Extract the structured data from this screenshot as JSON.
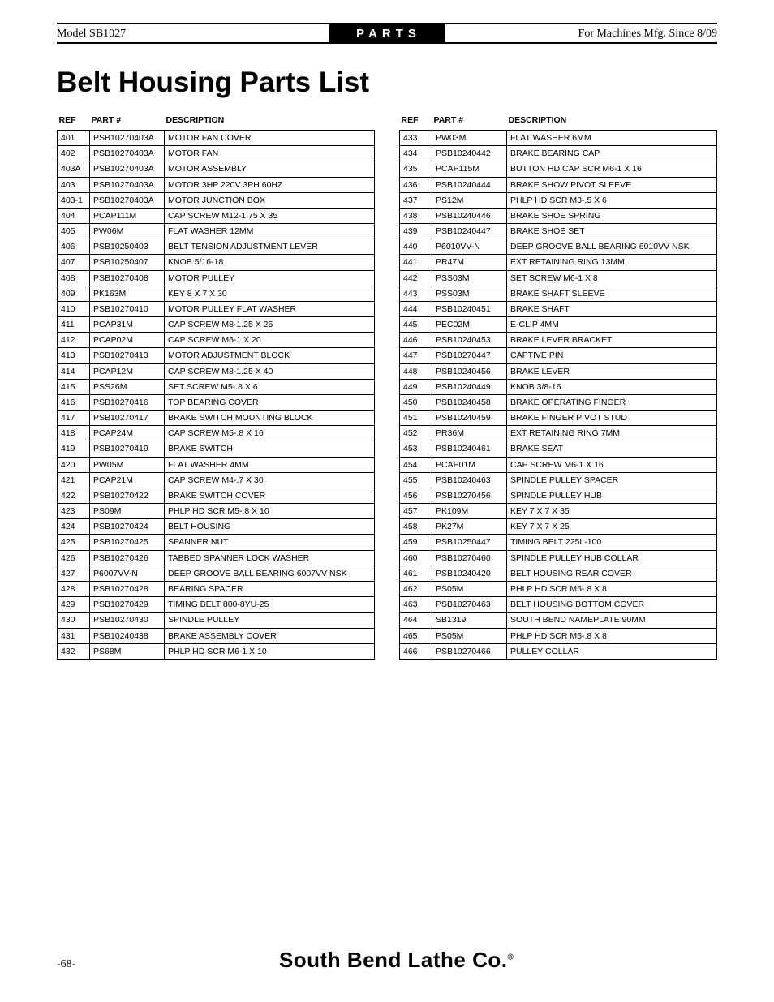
{
  "header": {
    "model": "Model SB1027",
    "tab": "PARTS",
    "mfg": "For Machines Mfg. Since 8/09"
  },
  "title": "Belt Housing Parts List",
  "columns": [
    "REF",
    "PART #",
    "DESCRIPTION"
  ],
  "left_rows": [
    [
      "401",
      "PSB10270403A",
      "MOTOR FAN COVER"
    ],
    [
      "402",
      "PSB10270403A",
      "MOTOR FAN"
    ],
    [
      "403A",
      "PSB10270403A",
      "MOTOR ASSEMBLY"
    ],
    [
      "403",
      "PSB10270403A",
      "MOTOR 3HP 220V 3PH 60HZ"
    ],
    [
      "403-1",
      "PSB10270403A",
      "MOTOR JUNCTION BOX"
    ],
    [
      "404",
      "PCAP111M",
      "CAP SCREW M12-1.75 X 35"
    ],
    [
      "405",
      "PW06M",
      "FLAT WASHER 12MM"
    ],
    [
      "406",
      "PSB10250403",
      "BELT TENSION ADJUSTMENT LEVER"
    ],
    [
      "407",
      "PSB10250407",
      "KNOB 5/16-18"
    ],
    [
      "408",
      "PSB10270408",
      "MOTOR PULLEY"
    ],
    [
      "409",
      "PK163M",
      "KEY 8 X 7 X 30"
    ],
    [
      "410",
      "PSB10270410",
      "MOTOR PULLEY FLAT WASHER"
    ],
    [
      "411",
      "PCAP31M",
      "CAP SCREW M8-1.25 X 25"
    ],
    [
      "412",
      "PCAP02M",
      "CAP SCREW M6-1 X 20"
    ],
    [
      "413",
      "PSB10270413",
      "MOTOR ADJUSTMENT BLOCK"
    ],
    [
      "414",
      "PCAP12M",
      "CAP SCREW M8-1.25 X 40"
    ],
    [
      "415",
      "PSS26M",
      "SET SCREW M5-.8 X 6"
    ],
    [
      "416",
      "PSB10270416",
      "TOP BEARING COVER"
    ],
    [
      "417",
      "PSB10270417",
      "BRAKE SWITCH MOUNTING BLOCK"
    ],
    [
      "418",
      "PCAP24M",
      "CAP SCREW M5-.8 X 16"
    ],
    [
      "419",
      "PSB10270419",
      "BRAKE SWITCH"
    ],
    [
      "420",
      "PW05M",
      "FLAT WASHER 4MM"
    ],
    [
      "421",
      "PCAP21M",
      "CAP SCREW M4-.7 X 30"
    ],
    [
      "422",
      "PSB10270422",
      "BRAKE SWITCH COVER"
    ],
    [
      "423",
      "PS09M",
      "PHLP HD SCR M5-.8 X 10"
    ],
    [
      "424",
      "PSB10270424",
      "BELT HOUSING"
    ],
    [
      "425",
      "PSB10270425",
      "SPANNER NUT"
    ],
    [
      "426",
      "PSB10270426",
      "TABBED SPANNER LOCK WASHER"
    ],
    [
      "427",
      "P6007VV-N",
      "DEEP GROOVE BALL BEARING 6007VV NSK"
    ],
    [
      "428",
      "PSB10270428",
      "BEARING SPACER"
    ],
    [
      "429",
      "PSB10270429",
      "TIMING BELT 800-8YU-25"
    ],
    [
      "430",
      "PSB10270430",
      "SPINDLE PULLEY"
    ],
    [
      "431",
      "PSB10240438",
      "BRAKE ASSEMBLY COVER"
    ],
    [
      "432",
      "PS68M",
      "PHLP HD SCR M6-1 X 10"
    ]
  ],
  "right_rows": [
    [
      "433",
      "PW03M",
      "FLAT WASHER 6MM"
    ],
    [
      "434",
      "PSB10240442",
      "BRAKE BEARING CAP"
    ],
    [
      "435",
      "PCAP115M",
      "BUTTON HD CAP SCR M6-1 X 16"
    ],
    [
      "436",
      "PSB10240444",
      "BRAKE SHOW PIVOT SLEEVE"
    ],
    [
      "437",
      "PS12M",
      "PHLP HD SCR M3-.5 X 6"
    ],
    [
      "438",
      "PSB10240446",
      "BRAKE SHOE SPRING"
    ],
    [
      "439",
      "PSB10240447",
      "BRAKE SHOE SET"
    ],
    [
      "440",
      "P6010VV-N",
      "DEEP GROOVE BALL BEARING 6010VV NSK"
    ],
    [
      "441",
      "PR47M",
      "EXT RETAINING RING 13MM"
    ],
    [
      "442",
      "PSS03M",
      "SET SCREW M6-1 X 8"
    ],
    [
      "443",
      "PSS03M",
      "BRAKE SHAFT SLEEVE"
    ],
    [
      "444",
      "PSB10240451",
      "BRAKE SHAFT"
    ],
    [
      "445",
      "PEC02M",
      "E-CLIP 4MM"
    ],
    [
      "446",
      "PSB10240453",
      "BRAKE LEVER BRACKET"
    ],
    [
      "447",
      "PSB10270447",
      "CAPTIVE PIN"
    ],
    [
      "448",
      "PSB10240456",
      "BRAKE LEVER"
    ],
    [
      "449",
      "PSB10240449",
      "KNOB 3/8-16"
    ],
    [
      "450",
      "PSB10240458",
      "BRAKE OPERATING FINGER"
    ],
    [
      "451",
      "PSB10240459",
      "BRAKE FINGER PIVOT STUD"
    ],
    [
      "452",
      "PR36M",
      "EXT RETAINING RING 7MM"
    ],
    [
      "453",
      "PSB10240461",
      "BRAKE SEAT"
    ],
    [
      "454",
      "PCAP01M",
      "CAP SCREW M6-1 X 16"
    ],
    [
      "455",
      "PSB10240463",
      "SPINDLE PULLEY SPACER"
    ],
    [
      "456",
      "PSB10270456",
      "SPINDLE PULLEY HUB"
    ],
    [
      "457",
      "PK109M",
      "KEY 7 X 7 X 35"
    ],
    [
      "458",
      "PK27M",
      "KEY 7 X 7 X 25"
    ],
    [
      "459",
      "PSB10250447",
      "TIMING BELT 225L-100"
    ],
    [
      "460",
      "PSB10270460",
      "SPINDLE PULLEY HUB COLLAR"
    ],
    [
      "461",
      "PSB10240420",
      "BELT HOUSING REAR COVER"
    ],
    [
      "462",
      "PS05M",
      "PHLP HD SCR M5-.8 X 8"
    ],
    [
      "463",
      "PSB10270463",
      "BELT HOUSING BOTTOM COVER"
    ],
    [
      "464",
      "SB1319",
      "SOUTH BEND NAMEPLATE 90MM"
    ],
    [
      "465",
      "PS05M",
      "PHLP HD SCR M5-.8 X 8"
    ],
    [
      "466",
      "PSB10270466",
      "PULLEY COLLAR"
    ]
  ],
  "footer": {
    "page": "-68-",
    "brand": "South Bend Lathe Co.",
    "reg": "®"
  }
}
